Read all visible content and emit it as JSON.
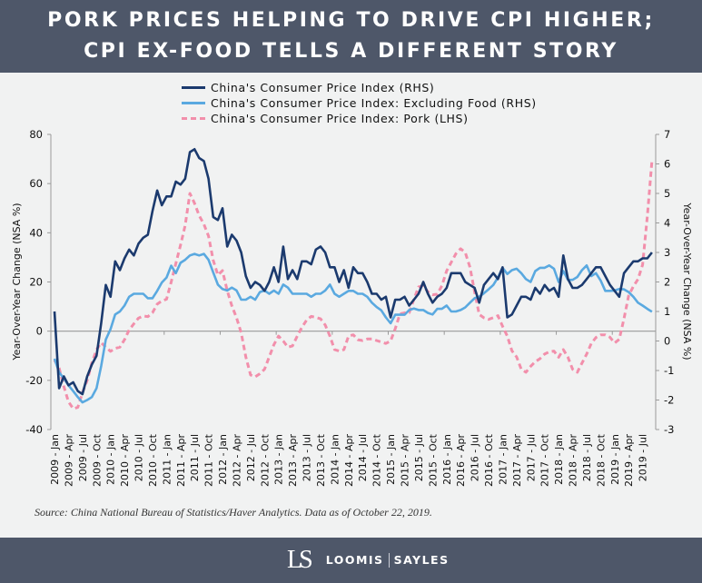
{
  "header": {
    "title_line1": "PORK PRICES HELPING TO DRIVE CPI HIGHER;",
    "title_line2": "CPI EX-FOOD TELLS A DIFFERENT STORY"
  },
  "legend": [
    {
      "label": "China's Consumer Price Index (RHS)",
      "color": "#1b3a6e",
      "style": "solid"
    },
    {
      "label": "China's Consumer Price Index: Excluding Food  (RHS)",
      "color": "#5aa9e0",
      "style": "solid"
    },
    {
      "label": "China's Consumer Price Index: Pork  (LHS)",
      "color": "#f28fab",
      "style": "dashed"
    }
  ],
  "source": "Source: China National Bureau of Statistics/Haver Analytics. Data as of October 22, 2019.",
  "footer": {
    "logo_mark": "LS",
    "brand_left": "LOOMIS",
    "brand_right": "SAYLES"
  },
  "chart_data": {
    "type": "line",
    "ylabel_left": "Year-Over-Year Change (NSA %)",
    "ylabel_right": "Year-Over-Year Change (NSA %)",
    "ylim_left": [
      -40,
      80
    ],
    "yticks_left": [
      "80",
      "60",
      "40",
      "20",
      "0",
      "-20",
      "-40"
    ],
    "ylim_right": [
      -3,
      7
    ],
    "yticks_right": [
      "7",
      "6",
      "5",
      "4",
      "3",
      "2",
      "1",
      "0",
      "-1",
      "-2",
      "-3"
    ],
    "grid": false,
    "legend_placement": "top",
    "x_tick_labels": [
      "2009 - Jan",
      "2009 - Apr",
      "2009 - Jul",
      "2009 - Oct",
      "2010 - Jan",
      "2010 - Apr",
      "2010 - Jul",
      "2010 - Oct",
      "2011 - Jan",
      "2011 - Apr",
      "2011 - Jul",
      "2011 - Oct",
      "2012 - Jan",
      "2012 - Apr",
      "2012 - Jul",
      "2012 - Oct",
      "2013 - Jan",
      "2013 - Apr",
      "2013 - Jul",
      "2013 - Oct",
      "2014 - Jan",
      "2014 - Apr",
      "2014 - Jul",
      "2014 - Oct",
      "2015 - Jan",
      "2015 - Apr",
      "2015 - Jul",
      "2015 - Oct",
      "2016 - Jan",
      "2016 - Apr",
      "2016 - Jul",
      "2016 - Oct",
      "2017 - Jan",
      "2017 - Apr",
      "2017 - Jul",
      "2017 - Oct",
      "2018 - Jan",
      "2018 - Apr",
      "2018 - Jul",
      "2018 - Oct",
      "2019 - Jan",
      "2019 - Apr",
      "2019 - Jul"
    ],
    "x": [
      "2009-01",
      "2009-02",
      "2009-03",
      "2009-04",
      "2009-05",
      "2009-06",
      "2009-07",
      "2009-08",
      "2009-09",
      "2009-10",
      "2009-11",
      "2009-12",
      "2010-01",
      "2010-02",
      "2010-03",
      "2010-04",
      "2010-05",
      "2010-06",
      "2010-07",
      "2010-08",
      "2010-09",
      "2010-10",
      "2010-11",
      "2010-12",
      "2011-01",
      "2011-02",
      "2011-03",
      "2011-04",
      "2011-05",
      "2011-06",
      "2011-07",
      "2011-08",
      "2011-09",
      "2011-10",
      "2011-11",
      "2011-12",
      "2012-01",
      "2012-02",
      "2012-03",
      "2012-04",
      "2012-05",
      "2012-06",
      "2012-07",
      "2012-08",
      "2012-09",
      "2012-10",
      "2012-11",
      "2012-12",
      "2013-01",
      "2013-02",
      "2013-03",
      "2013-04",
      "2013-05",
      "2013-06",
      "2013-07",
      "2013-08",
      "2013-09",
      "2013-10",
      "2013-11",
      "2013-12",
      "2014-01",
      "2014-02",
      "2014-03",
      "2014-04",
      "2014-05",
      "2014-06",
      "2014-07",
      "2014-08",
      "2014-09",
      "2014-10",
      "2014-11",
      "2014-12",
      "2015-01",
      "2015-02",
      "2015-03",
      "2015-04",
      "2015-05",
      "2015-06",
      "2015-07",
      "2015-08",
      "2015-09",
      "2015-10",
      "2015-11",
      "2015-12",
      "2016-01",
      "2016-02",
      "2016-03",
      "2016-04",
      "2016-05",
      "2016-06",
      "2016-07",
      "2016-08",
      "2016-09",
      "2016-10",
      "2016-11",
      "2016-12",
      "2017-01",
      "2017-02",
      "2017-03",
      "2017-04",
      "2017-05",
      "2017-06",
      "2017-07",
      "2017-08",
      "2017-09",
      "2017-10",
      "2017-11",
      "2017-12",
      "2018-01",
      "2018-02",
      "2018-03",
      "2018-04",
      "2018-05",
      "2018-06",
      "2018-07",
      "2018-08",
      "2018-09",
      "2018-10",
      "2018-11",
      "2018-12",
      "2019-01",
      "2019-02",
      "2019-03",
      "2019-04",
      "2019-05",
      "2019-06",
      "2019-07",
      "2019-08",
      "2019-09"
    ],
    "series": [
      {
        "name": "China's Consumer Price Index (RHS)",
        "axis": "right",
        "color": "#1b3a6e",
        "style": "solid",
        "values": [
          1.0,
          -1.6,
          -1.2,
          -1.5,
          -1.4,
          -1.7,
          -1.8,
          -1.2,
          -0.8,
          -0.5,
          0.6,
          1.9,
          1.5,
          2.7,
          2.4,
          2.8,
          3.1,
          2.9,
          3.3,
          3.5,
          3.6,
          4.4,
          5.1,
          4.6,
          4.9,
          4.9,
          5.4,
          5.3,
          5.5,
          6.4,
          6.5,
          6.2,
          6.1,
          5.5,
          4.2,
          4.1,
          4.5,
          3.2,
          3.6,
          3.4,
          3.0,
          2.2,
          1.8,
          2.0,
          1.9,
          1.7,
          2.0,
          2.5,
          2.0,
          3.2,
          2.1,
          2.4,
          2.1,
          2.7,
          2.7,
          2.6,
          3.1,
          3.2,
          3.0,
          2.5,
          2.5,
          2.0,
          2.4,
          1.8,
          2.5,
          2.3,
          2.3,
          2.0,
          1.6,
          1.6,
          1.4,
          1.5,
          0.8,
          1.4,
          1.4,
          1.5,
          1.2,
          1.4,
          1.6,
          2.0,
          1.6,
          1.3,
          1.5,
          1.6,
          1.8,
          2.3,
          2.3,
          2.3,
          2.0,
          1.9,
          1.8,
          1.3,
          1.9,
          2.1,
          2.3,
          2.1,
          2.5,
          0.8,
          0.9,
          1.2,
          1.5,
          1.5,
          1.4,
          1.8,
          1.6,
          1.9,
          1.7,
          1.8,
          1.5,
          2.9,
          2.1,
          1.8,
          1.8,
          1.9,
          2.1,
          2.3,
          2.5,
          2.5,
          2.2,
          1.9,
          1.7,
          1.5,
          2.3,
          2.5,
          2.7,
          2.7,
          2.8,
          2.8,
          3.0
        ]
      },
      {
        "name": "China's Consumer Price Index: Excluding Food  (RHS)",
        "axis": "right",
        "color": "#5aa9e0",
        "style": "solid",
        "values": [
          -0.6,
          -1.06,
          -1.27,
          -1.5,
          -1.7,
          -1.9,
          -2.08,
          -2.0,
          -1.9,
          -1.6,
          -0.85,
          0.05,
          0.4,
          0.9,
          1.0,
          1.2,
          1.5,
          1.6,
          1.6,
          1.6,
          1.45,
          1.45,
          1.7,
          1.98,
          2.15,
          2.55,
          2.3,
          2.65,
          2.75,
          2.9,
          2.95,
          2.9,
          2.95,
          2.75,
          2.32,
          1.91,
          1.76,
          1.71,
          1.81,
          1.71,
          1.4,
          1.4,
          1.5,
          1.4,
          1.66,
          1.71,
          1.6,
          1.71,
          1.6,
          1.91,
          1.81,
          1.6,
          1.6,
          1.6,
          1.6,
          1.5,
          1.6,
          1.6,
          1.71,
          1.91,
          1.6,
          1.5,
          1.6,
          1.7,
          1.7,
          1.6,
          1.6,
          1.5,
          1.3,
          1.15,
          1.04,
          0.8,
          0.6,
          0.89,
          0.89,
          0.89,
          1.05,
          1.1,
          1.05,
          1.05,
          0.95,
          0.9,
          1.09,
          1.09,
          1.2,
          1.0,
          1.0,
          1.05,
          1.14,
          1.3,
          1.45,
          1.5,
          1.62,
          1.75,
          1.9,
          2.15,
          2.48,
          2.27,
          2.4,
          2.45,
          2.3,
          2.1,
          2.0,
          2.37,
          2.48,
          2.48,
          2.56,
          2.45,
          2.0,
          2.37,
          2.07,
          2.07,
          2.17,
          2.4,
          2.56,
          2.2,
          2.3,
          2.05,
          1.7,
          1.7,
          1.71,
          1.76,
          1.75,
          1.66,
          1.5,
          1.3,
          1.2,
          1.09,
          0.99
        ]
      },
      {
        "name": "China's Consumer Price Index: Pork  (LHS)",
        "axis": "left",
        "color": "#f28fab",
        "style": "dashed",
        "values": [
          -11.8,
          -15,
          -22.5,
          -28.7,
          -31.5,
          -31,
          -25,
          -20,
          -13,
          -7.5,
          -4.7,
          -6.5,
          -8.2,
          -7,
          -6.5,
          -3.5,
          0.5,
          3,
          5.3,
          6.2,
          5.9,
          7.5,
          11,
          12.3,
          13,
          20,
          27.5,
          35,
          43,
          56,
          52,
          47,
          43.5,
          38.7,
          28.8,
          22.8,
          24.6,
          16.5,
          10.3,
          5.4,
          -0.7,
          -10.5,
          -17.8,
          -18.6,
          -17.3,
          -15.5,
          -10.5,
          -5.5,
          -2,
          -4,
          -6.5,
          -6,
          -2,
          1.5,
          4.5,
          6,
          5.6,
          5,
          2.5,
          -2,
          -7.5,
          -8.1,
          -7.5,
          -2,
          -1.5,
          -3.5,
          -3.8,
          -3.2,
          -3.2,
          -3.8,
          -4.4,
          -5,
          -4,
          1,
          7,
          7.5,
          7.5,
          13,
          18,
          18.5,
          16,
          14.8,
          15,
          18.5,
          24.5,
          28,
          31.5,
          33.5,
          32,
          26,
          16,
          6.8,
          5.4,
          4.8,
          5.5,
          6.3,
          2,
          -2,
          -8,
          -10.5,
          -15.5,
          -16.7,
          -14.3,
          -12.4,
          -11.2,
          -9.3,
          -8.4,
          -8.1,
          -10.6,
          -7.5,
          -10.6,
          -15.5,
          -16.7,
          -13,
          -9.3,
          -5,
          -2.6,
          -1.5,
          -1.5,
          -2.5,
          -4.8,
          -3.3,
          5.1,
          14.4,
          18.2,
          21.1,
          27,
          46.7,
          69.3
        ]
      }
    ]
  }
}
